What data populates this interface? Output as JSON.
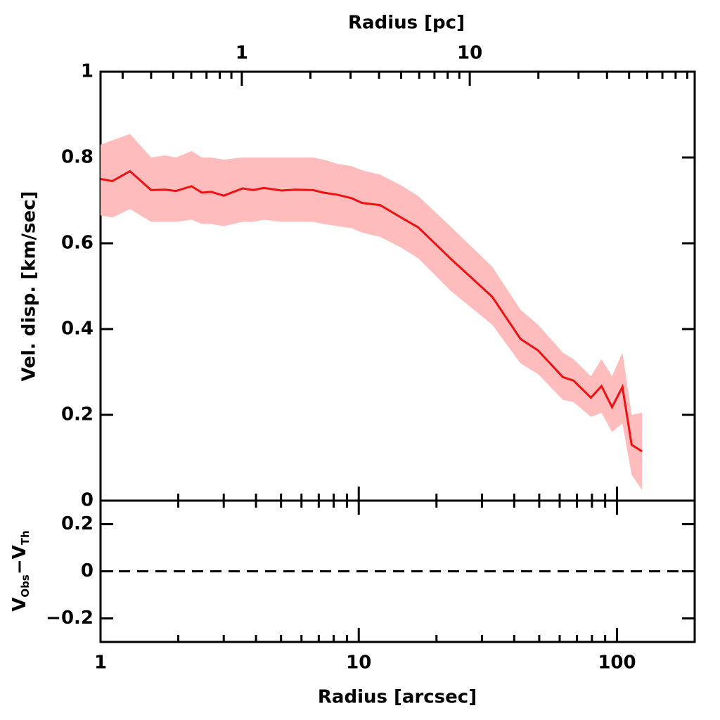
{
  "chart_data": [
    {
      "type": "line",
      "x2label": "Radius [pc]",
      "ylabel": "Vel. disp. [km/sec]",
      "x": [
        1.0,
        1.11,
        1.3,
        1.57,
        1.78,
        1.96,
        2.25,
        2.47,
        2.68,
        3.0,
        3.55,
        3.9,
        4.29,
        5.02,
        5.69,
        6.65,
        7.31,
        8.29,
        9.39,
        10.3,
        12.1,
        14.6,
        17.0,
        22.6,
        32.9,
        42.3,
        49.5,
        61.7,
        67.8,
        79.3,
        87.1,
        95.7,
        105,
        114,
        125
      ],
      "values": [
        0.75,
        0.745,
        0.768,
        0.724,
        0.725,
        0.722,
        0.733,
        0.718,
        0.72,
        0.711,
        0.728,
        0.724,
        0.729,
        0.723,
        0.725,
        0.724,
        0.718,
        0.713,
        0.705,
        0.694,
        0.689,
        0.66,
        0.637,
        0.565,
        0.475,
        0.377,
        0.35,
        0.288,
        0.28,
        0.24,
        0.267,
        0.218,
        0.265,
        0.13,
        0.115
      ],
      "band_upper": [
        0.83,
        0.84,
        0.855,
        0.8,
        0.805,
        0.8,
        0.815,
        0.8,
        0.8,
        0.795,
        0.8,
        0.8,
        0.8,
        0.8,
        0.8,
        0.8,
        0.795,
        0.785,
        0.78,
        0.77,
        0.76,
        0.735,
        0.71,
        0.64,
        0.545,
        0.445,
        0.41,
        0.345,
        0.33,
        0.29,
        0.33,
        0.29,
        0.345,
        0.2,
        0.205
      ],
      "band_lower": [
        0.665,
        0.66,
        0.68,
        0.65,
        0.65,
        0.65,
        0.655,
        0.645,
        0.645,
        0.64,
        0.65,
        0.65,
        0.655,
        0.65,
        0.65,
        0.65,
        0.645,
        0.64,
        0.635,
        0.625,
        0.615,
        0.59,
        0.565,
        0.49,
        0.41,
        0.32,
        0.295,
        0.235,
        0.23,
        0.195,
        0.205,
        0.16,
        0.18,
        0.06,
        0.025
      ],
      "color": "#ee1111",
      "band_color": "#ffbcbc",
      "xlog": true,
      "xlim": [
        1,
        200
      ],
      "xminor": [
        2,
        3,
        4,
        5,
        6,
        7,
        8,
        9,
        20,
        30,
        40,
        50,
        60,
        70,
        80,
        90,
        200
      ],
      "xmajor": [
        10,
        100
      ],
      "x2lim": [
        0.24,
        97
      ],
      "x2ticks": [
        1,
        10
      ],
      "x2minor": [
        0.3,
        0.4,
        0.5,
        0.6,
        0.7,
        0.8,
        0.9,
        2,
        3,
        4,
        5,
        6,
        7,
        8,
        9,
        20,
        30,
        40,
        50,
        60,
        70,
        80,
        90
      ],
      "ylim": [
        0,
        1
      ],
      "yticks": [
        0,
        0.2,
        0.4,
        0.6,
        0.8,
        1
      ]
    },
    {
      "type": "residual",
      "ylabel": {
        "v1": "V",
        "s1": "Obs",
        "v2": "−V",
        "s2": "Th"
      },
      "xlabel": "Radius [arcsec]",
      "xlog": true,
      "xlim": [
        1,
        200
      ],
      "xticks": [
        1,
        10,
        100
      ],
      "xminor": [
        2,
        3,
        4,
        5,
        6,
        7,
        8,
        9,
        20,
        30,
        40,
        50,
        60,
        70,
        80,
        90,
        200
      ],
      "ylim": [
        -0.3,
        0.3
      ],
      "yticks": [
        {
          "value": -0.2,
          "label": "−0.2"
        },
        0,
        0.2
      ],
      "hline": 0
    }
  ]
}
